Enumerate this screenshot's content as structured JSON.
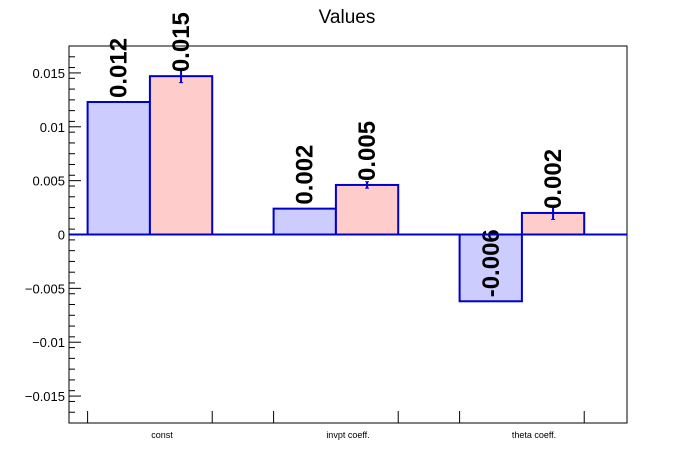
{
  "chart_data": {
    "type": "bar",
    "title": "Values",
    "xlabel": "",
    "ylabel": "",
    "categories": [
      "const",
      "invpt coeff.",
      "theta coeff."
    ],
    "ylim": [
      -0.0175,
      0.0175
    ],
    "yticks": [
      -0.015,
      -0.01,
      -0.005,
      0,
      0.005,
      0.01,
      0.015
    ],
    "ytick_labels": [
      "−0.015",
      "−0.01",
      "−0.005",
      "0",
      "0.005",
      "0.01",
      "0.015"
    ],
    "grid": false,
    "series": [
      {
        "values": [
          0.0123,
          0.0024,
          -0.0062
        ],
        "labels": [
          "0.012",
          "0.002",
          "-0.006"
        ],
        "color": "#ccccff",
        "edge_color": "#0000cc"
      },
      {
        "values": [
          0.0147,
          0.0046,
          0.002
        ],
        "errors": [
          0.0006,
          0.0003,
          0.0006
        ],
        "labels": [
          "0.015",
          "0.005",
          "0.002"
        ],
        "color": "#ffcccc",
        "edge_color": "#0000cc"
      }
    ]
  }
}
